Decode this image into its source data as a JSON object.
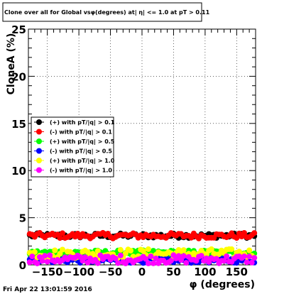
{
  "chart_data": {
    "type": "scatter",
    "title": "Clone  over all for Global vsφ(degrees) at| η| <= 1.0 at pT > 0.11",
    "xlabel": "φ (degrees)",
    "ylabel": "CloneA (%)",
    "xlim": [
      -180,
      180
    ],
    "ylim": [
      0,
      25
    ],
    "x_ticks": [
      -150,
      -100,
      -50,
      0,
      50,
      100,
      150
    ],
    "x_tick_labels": [
      "−150",
      "−100",
      "−50",
      "0",
      "50",
      "100",
      "150"
    ],
    "y_ticks": [
      0,
      5,
      10,
      15,
      20,
      25
    ],
    "y_tick_labels": [
      "0",
      "5",
      "10",
      "15",
      "20",
      "25"
    ],
    "grid": true,
    "legend_placement": "middle-left",
    "timestamp": "Fri Apr 22 13:01:59 2016",
    "series": [
      {
        "name": "(+) with pT/|q| > 0.1",
        "color": "#000000",
        "base": 3.1,
        "spread": 0.25
      },
      {
        "name": "(-) with pT/|q| > 0.1",
        "color": "#ff0000",
        "base": 3.1,
        "spread": 0.3
      },
      {
        "name": "(+) with pT/|q| > 0.5",
        "color": "#00ff00",
        "base": 1.3,
        "spread": 0.25
      },
      {
        "name": "(-) with pT/|q| > 0.5",
        "color": "#0000ff",
        "base": 0.5,
        "spread": 0.3
      },
      {
        "name": "(+) with pT/|q| > 1.0",
        "color": "#ffff00",
        "base": 1.2,
        "spread": 0.5
      },
      {
        "name": "(-) with pT/|q| > 1.0",
        "color": "#ff00ff",
        "base": 0.6,
        "spread": 0.45
      }
    ]
  }
}
